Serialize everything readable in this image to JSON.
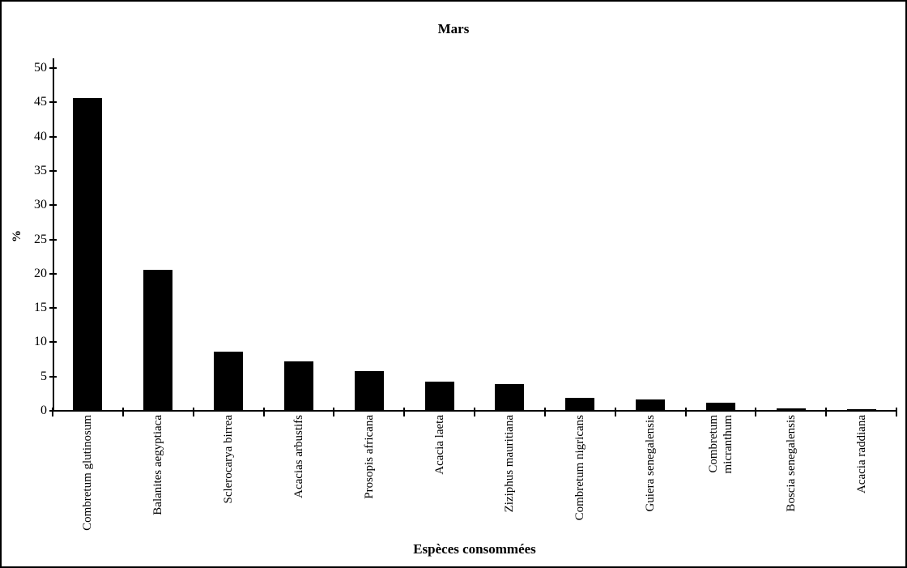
{
  "chart_data": {
    "type": "bar",
    "title": "Mars",
    "xlabel": "Espèces consommées",
    "ylabel": "%",
    "ylim": [
      0,
      50
    ],
    "yticks": [
      0,
      5,
      10,
      15,
      20,
      25,
      30,
      35,
      40,
      45,
      50
    ],
    "grid": false,
    "legend": "none",
    "bar_color": "#000000",
    "categories": [
      "Combretum glutinosum",
      "Balanites aegyptiaca",
      "Sclerocarya birrea",
      "Acacias arbustifs",
      "Prosopis africana",
      "Acacia laeta",
      "Ziziphus mauritiana",
      "Combretum nigricans",
      "Guiera senegalensis",
      "Combretum\nmicranthum",
      "Boscia senegalensis",
      "Acacia raddiana"
    ],
    "values": [
      45.5,
      20.5,
      8.5,
      7.1,
      5.7,
      4.1,
      3.8,
      1.8,
      1.5,
      1.1,
      0.2,
      0.1
    ]
  }
}
